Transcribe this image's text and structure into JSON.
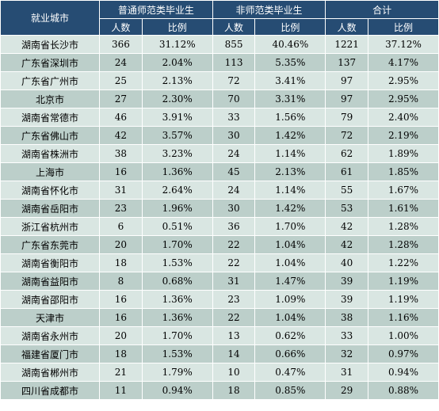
{
  "header": {
    "city_col": "就业城市",
    "groups": [
      "普通师范类毕业生",
      "非师范类毕业生",
      "合计"
    ],
    "sub": [
      "人数",
      "比例"
    ]
  },
  "rows": [
    {
      "city": "湖南省长沙市",
      "n1": "366",
      "p1": "31.12%",
      "n2": "855",
      "p2": "40.46%",
      "n3": "1221",
      "p3": "37.12%"
    },
    {
      "city": "广东省深圳市",
      "n1": "24",
      "p1": "2.04%",
      "n2": "113",
      "p2": "5.35%",
      "n3": "137",
      "p3": "4.17%"
    },
    {
      "city": "广东省广州市",
      "n1": "25",
      "p1": "2.13%",
      "n2": "72",
      "p2": "3.41%",
      "n3": "97",
      "p3": "2.95%"
    },
    {
      "city": "北京市",
      "n1": "27",
      "p1": "2.30%",
      "n2": "70",
      "p2": "3.31%",
      "n3": "97",
      "p3": "2.95%"
    },
    {
      "city": "湖南省常德市",
      "n1": "46",
      "p1": "3.91%",
      "n2": "33",
      "p2": "1.56%",
      "n3": "79",
      "p3": "2.40%"
    },
    {
      "city": "广东省佛山市",
      "n1": "42",
      "p1": "3.57%",
      "n2": "30",
      "p2": "1.42%",
      "n3": "72",
      "p3": "2.19%"
    },
    {
      "city": "湖南省株洲市",
      "n1": "38",
      "p1": "3.23%",
      "n2": "24",
      "p2": "1.14%",
      "n3": "62",
      "p3": "1.89%"
    },
    {
      "city": "上海市",
      "n1": "16",
      "p1": "1.36%",
      "n2": "45",
      "p2": "2.13%",
      "n3": "61",
      "p3": "1.85%"
    },
    {
      "city": "湖南省怀化市",
      "n1": "31",
      "p1": "2.64%",
      "n2": "24",
      "p2": "1.14%",
      "n3": "55",
      "p3": "1.67%"
    },
    {
      "city": "湖南省岳阳市",
      "n1": "23",
      "p1": "1.96%",
      "n2": "30",
      "p2": "1.42%",
      "n3": "53",
      "p3": "1.61%"
    },
    {
      "city": "浙江省杭州市",
      "n1": "6",
      "p1": "0.51%",
      "n2": "36",
      "p2": "1.70%",
      "n3": "42",
      "p3": "1.28%"
    },
    {
      "city": "广东省东莞市",
      "n1": "20",
      "p1": "1.70%",
      "n2": "22",
      "p2": "1.04%",
      "n3": "42",
      "p3": "1.28%"
    },
    {
      "city": "湖南省衡阳市",
      "n1": "18",
      "p1": "1.53%",
      "n2": "22",
      "p2": "1.04%",
      "n3": "40",
      "p3": "1.22%"
    },
    {
      "city": "湖南省益阳市",
      "n1": "8",
      "p1": "0.68%",
      "n2": "31",
      "p2": "1.47%",
      "n3": "39",
      "p3": "1.19%"
    },
    {
      "city": "湖南省邵阳市",
      "n1": "16",
      "p1": "1.36%",
      "n2": "23",
      "p2": "1.09%",
      "n3": "39",
      "p3": "1.19%"
    },
    {
      "city": "天津市",
      "n1": "16",
      "p1": "1.36%",
      "n2": "22",
      "p2": "1.04%",
      "n3": "38",
      "p3": "1.16%"
    },
    {
      "city": "湖南省永州市",
      "n1": "20",
      "p1": "1.70%",
      "n2": "13",
      "p2": "0.62%",
      "n3": "33",
      "p3": "1.00%"
    },
    {
      "city": "福建省厦门市",
      "n1": "18",
      "p1": "1.53%",
      "n2": "14",
      "p2": "0.66%",
      "n3": "32",
      "p3": "0.97%"
    },
    {
      "city": "湖南省郴州市",
      "n1": "21",
      "p1": "1.79%",
      "n2": "10",
      "p2": "0.47%",
      "n3": "31",
      "p3": "0.94%"
    },
    {
      "city": "四川省成都市",
      "n1": "11",
      "p1": "0.94%",
      "n2": "18",
      "p2": "0.85%",
      "n3": "29",
      "p3": "0.88%"
    }
  ]
}
